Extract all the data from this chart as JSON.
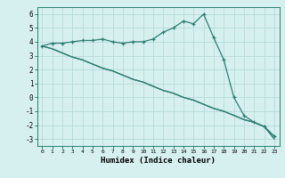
{
  "x": [
    0,
    1,
    2,
    3,
    4,
    5,
    6,
    7,
    8,
    9,
    10,
    11,
    12,
    13,
    14,
    15,
    16,
    17,
    18,
    19,
    20,
    21,
    22,
    23
  ],
  "line1": [
    3.7,
    3.9,
    3.9,
    4.0,
    4.1,
    4.1,
    4.2,
    4.0,
    3.9,
    4.0,
    4.0,
    4.2,
    4.7,
    5.0,
    5.5,
    5.3,
    6.0,
    4.3,
    2.7,
    0.0,
    -1.3,
    -1.8,
    -2.1,
    -2.8
  ],
  "line2": [
    3.7,
    3.5,
    3.2,
    2.9,
    2.7,
    2.4,
    2.1,
    1.9,
    1.6,
    1.3,
    1.1,
    0.8,
    0.5,
    0.3,
    0.0,
    -0.2,
    -0.5,
    -0.8,
    -1.0,
    -1.3,
    -1.6,
    -1.8,
    -2.1,
    -2.8
  ],
  "line3": [
    3.7,
    3.5,
    3.2,
    2.9,
    2.7,
    2.4,
    2.1,
    1.9,
    1.6,
    1.3,
    1.1,
    0.8,
    0.5,
    0.3,
    0.0,
    -0.2,
    -0.5,
    -0.8,
    -1.0,
    -1.3,
    -1.6,
    -1.8,
    -2.1,
    -3.0
  ],
  "line_color": "#2e7d72",
  "bg_color": "#d6f0f0",
  "grid_color": "#b8dada",
  "xlabel": "Humidex (Indice chaleur)",
  "ylim": [
    -3.5,
    6.5
  ],
  "xlim": [
    -0.5,
    23.5
  ]
}
